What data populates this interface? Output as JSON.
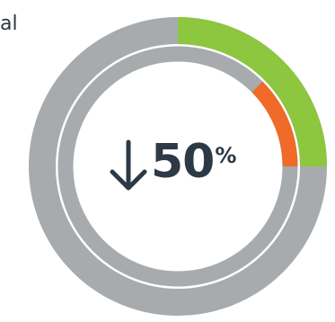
{
  "label": {
    "text": "al"
  },
  "readout": {
    "value": "50",
    "unit": "%"
  },
  "chart_data": {
    "type": "pie",
    "variant": "concentric-donut",
    "rings": [
      {
        "ring": "outer",
        "track_color": "#a7abad",
        "segment": {
          "start_fraction": 0.0,
          "value_fraction": 0.25,
          "color": "#8dc63f"
        }
      },
      {
        "ring": "inner",
        "track_color": "#a7abad",
        "segment": {
          "start_fraction": 0.125,
          "value_fraction": 0.125,
          "color": "#f06a2a"
        }
      }
    ],
    "center_value": 50,
    "center_unit": "%",
    "direction": "down",
    "title": "",
    "legend": "none"
  }
}
